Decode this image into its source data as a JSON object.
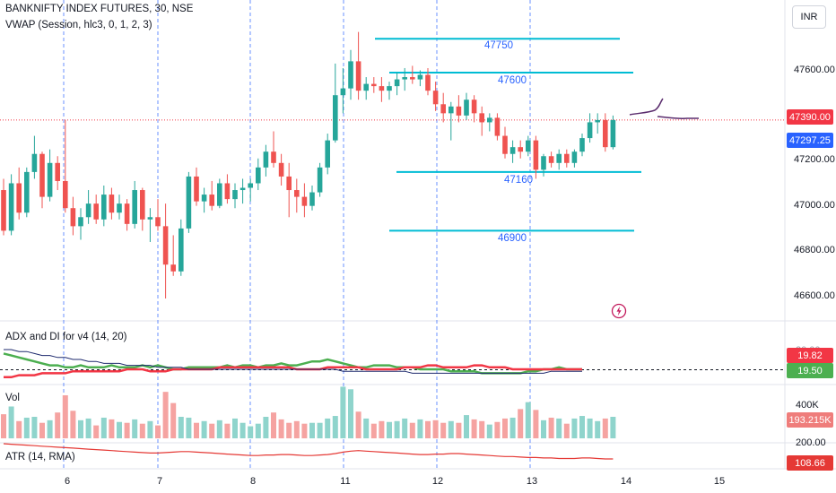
{
  "header": {
    "symbol_line": "BANKNIFTY INDEX FUTURES, 30, NSE",
    "indicator_line": "VWAP (Session, hlc3, 0, 1, 2, 3)",
    "currency": "INR"
  },
  "panes": {
    "adx_label": "ADX and DI for v4 (14, 20)",
    "vol_label": "Vol",
    "atr_label": "ATR (14, RMA)"
  },
  "colors": {
    "up": "#26a69a",
    "down": "#ef5350",
    "level_line": "#00bcd4",
    "level_text": "#2962ff",
    "last_price": "#f23645",
    "vwap": "#2962ff",
    "adx_green": "#4caf50",
    "adx_red": "#f23645",
    "adx_navy": "#1e2a6e",
    "atr": "#e53935",
    "drawing": "#5b2d6e"
  },
  "chart_data": [
    {
      "type": "candlestick",
      "title": "BANKNIFTY INDEX FUTURES, 30, NSE",
      "x_tick_labels": [
        "6",
        "7",
        "8",
        "11",
        "12",
        "13",
        "14",
        "15"
      ],
      "y_tick_labels": [
        "47600.00",
        "47400.00",
        "47200.00",
        "47000.00",
        "46800.00",
        "46600.00"
      ],
      "ylim": [
        46500,
        47870
      ],
      "horizontal_levels": [
        47750,
        47600,
        47160,
        46900
      ],
      "level_labels": [
        "47750",
        "47600",
        "47160",
        "46900"
      ],
      "last_price": "47390.00",
      "vwap_value": "47297.25",
      "candles": [
        [
          47080,
          47130,
          46880,
          46900
        ],
        [
          46900,
          47150,
          46880,
          47110
        ],
        [
          47110,
          47180,
          46950,
          46980
        ],
        [
          46980,
          47180,
          46960,
          47160
        ],
        [
          47160,
          47320,
          47130,
          47240
        ],
        [
          47240,
          47250,
          47000,
          47050
        ],
        [
          47050,
          47260,
          47030,
          47200
        ],
        [
          47200,
          47230,
          47080,
          47120
        ],
        [
          47120,
          47390,
          46980,
          47000
        ],
        [
          47000,
          47050,
          46880,
          46920
        ],
        [
          46920,
          47000,
          46860,
          46960
        ],
        [
          46960,
          47080,
          46930,
          47020
        ],
        [
          47020,
          47060,
          46930,
          46950
        ],
        [
          46950,
          47100,
          46920,
          47060
        ],
        [
          47060,
          47090,
          46950,
          46980
        ],
        [
          46980,
          47060,
          46950,
          47020
        ],
        [
          47020,
          47040,
          46900,
          46930
        ],
        [
          46930,
          47120,
          46910,
          47080
        ],
        [
          47080,
          47090,
          46900,
          46950
        ],
        [
          46950,
          47000,
          46850,
          46960
        ],
        [
          46960,
          47040,
          46900,
          46920
        ],
        [
          46920,
          47020,
          46600,
          46750
        ],
        [
          46750,
          46880,
          46700,
          46720
        ],
        [
          46720,
          46950,
          46700,
          46910
        ],
        [
          46910,
          47160,
          46890,
          47140
        ],
        [
          47140,
          47180,
          47010,
          47030
        ],
        [
          47030,
          47090,
          46980,
          47060
        ],
        [
          47060,
          47120,
          46990,
          47010
        ],
        [
          47010,
          47130,
          47000,
          47110
        ],
        [
          47110,
          47150,
          47020,
          47040
        ],
        [
          47040,
          47110,
          47000,
          47080
        ],
        [
          47080,
          47130,
          47020,
          47090
        ],
        [
          47090,
          47130,
          47030,
          47110
        ],
        [
          47110,
          47220,
          47080,
          47180
        ],
        [
          47180,
          47280,
          47140,
          47250
        ],
        [
          47250,
          47340,
          47180,
          47200
        ],
        [
          47200,
          47240,
          47100,
          47140
        ],
        [
          47140,
          47200,
          46960,
          47080
        ],
        [
          47080,
          47130,
          46980,
          47050
        ],
        [
          47050,
          47110,
          46960,
          47010
        ],
        [
          47010,
          47100,
          46990,
          47070
        ],
        [
          47070,
          47200,
          47050,
          47180
        ],
        [
          47180,
          47330,
          47150,
          47300
        ],
        [
          47300,
          47640,
          47290,
          47500
        ],
        [
          47500,
          47620,
          47420,
          47530
        ],
        [
          47530,
          47700,
          47480,
          47650
        ],
        [
          47650,
          47780,
          47480,
          47520
        ],
        [
          47520,
          47580,
          47480,
          47550
        ],
        [
          47550,
          47580,
          47510,
          47540
        ],
        [
          47540,
          47580,
          47470,
          47520
        ],
        [
          47520,
          47560,
          47480,
          47540
        ],
        [
          47540,
          47600,
          47500,
          47570
        ],
        [
          47570,
          47620,
          47520,
          47580
        ],
        [
          47580,
          47630,
          47550,
          47570
        ],
        [
          47570,
          47610,
          47540,
          47590
        ],
        [
          47590,
          47620,
          47500,
          47520
        ],
        [
          47520,
          47560,
          47430,
          47460
        ],
        [
          47460,
          47510,
          47380,
          47420
        ],
        [
          47420,
          47470,
          47300,
          47450
        ],
        [
          47450,
          47500,
          47380,
          47410
        ],
        [
          47410,
          47510,
          47390,
          47480
        ],
        [
          47480,
          47500,
          47380,
          47420
        ],
        [
          47420,
          47450,
          47320,
          47380
        ],
        [
          47380,
          47420,
          47340,
          47400
        ],
        [
          47400,
          47420,
          47300,
          47320
        ],
        [
          47320,
          47360,
          47220,
          47240
        ],
        [
          47240,
          47300,
          47200,
          47270
        ],
        [
          47270,
          47300,
          47220,
          47250
        ],
        [
          47250,
          47320,
          47230,
          47300
        ],
        [
          47300,
          47320,
          47130,
          47170
        ],
        [
          47170,
          47240,
          47140,
          47230
        ],
        [
          47230,
          47250,
          47180,
          47200
        ],
        [
          47200,
          47260,
          47170,
          47240
        ],
        [
          47240,
          47260,
          47180,
          47200
        ],
        [
          47200,
          47260,
          47180,
          47250
        ],
        [
          47250,
          47330,
          47230,
          47310
        ],
        [
          47310,
          47420,
          47290,
          47380
        ],
        [
          47380,
          47420,
          47330,
          47390
        ],
        [
          47390,
          47420,
          47250,
          47270
        ],
        [
          47270,
          47410,
          47260,
          47390
        ]
      ]
    },
    {
      "type": "line",
      "title": "ADX and DI for v4 (14, 20)",
      "y_tick_labels": [
        "20.00"
      ],
      "series": [
        {
          "name": "+DI",
          "value_label": "19.50",
          "values": [
            28,
            27,
            26,
            25,
            24,
            23,
            22,
            22,
            21,
            21,
            22,
            21,
            21,
            21,
            22,
            21,
            21,
            21,
            22,
            21,
            22,
            21,
            20,
            20,
            21,
            21,
            21,
            21,
            21,
            22,
            21,
            22,
            22,
            21,
            22,
            22,
            23,
            22,
            22,
            23,
            24,
            24,
            25,
            24,
            23,
            22,
            21,
            21,
            22,
            22,
            22,
            21,
            21,
            21,
            20,
            20,
            20,
            20,
            19,
            19,
            19,
            19,
            18,
            18,
            18,
            18,
            18,
            18,
            19,
            19,
            20,
            20,
            21,
            20,
            20,
            20
          ]
        },
        {
          "name": "-DI",
          "value_label": "19.82",
          "values": [
            16,
            16,
            17,
            17,
            17,
            18,
            18,
            18,
            18,
            19,
            19,
            19,
            19,
            19,
            19,
            19,
            20,
            20,
            20,
            19,
            19,
            19,
            20,
            20,
            20,
            20,
            20,
            20,
            21,
            21,
            21,
            21,
            21,
            21,
            21,
            21,
            21,
            21,
            20,
            20,
            20,
            20,
            21,
            21,
            21,
            21,
            21,
            20,
            20,
            20,
            20,
            20,
            21,
            21,
            21,
            22,
            22,
            21,
            21,
            21,
            21,
            22,
            22,
            21,
            21,
            21,
            20,
            20,
            20,
            20,
            20,
            20,
            20,
            20,
            20,
            20
          ]
        },
        {
          "name": "ADX",
          "values": [
            30,
            30,
            29,
            29,
            28,
            27,
            27,
            26,
            26,
            25,
            25,
            24,
            24,
            23,
            23,
            23,
            22,
            22,
            22,
            22,
            21,
            21,
            21,
            21,
            20,
            20,
            20,
            20,
            20,
            20,
            20,
            20,
            20,
            20,
            20,
            20,
            20,
            20,
            20,
            20,
            20,
            20,
            20,
            20,
            19,
            19,
            19,
            19,
            19,
            19,
            19,
            19,
            19,
            18,
            18,
            18,
            18,
            18,
            18,
            18,
            18,
            18,
            18,
            18,
            18,
            18,
            18,
            18,
            18,
            18,
            18,
            19,
            19,
            19,
            19,
            19
          ]
        }
      ]
    },
    {
      "type": "bar",
      "title": "Vol",
      "y_tick_labels": [
        "400K",
        "200.00"
      ],
      "value_label": "193.215K",
      "values": [
        280,
        370,
        200,
        240,
        250,
        180,
        210,
        300,
        500,
        320,
        210,
        230,
        150,
        240,
        220,
        190,
        180,
        220,
        170,
        200,
        150,
        540,
        410,
        250,
        240,
        180,
        200,
        170,
        210,
        170,
        230,
        180,
        140,
        170,
        250,
        300,
        220,
        180,
        200,
        170,
        180,
        180,
        230,
        260,
        600,
        570,
        310,
        230,
        170,
        200,
        190,
        200,
        230,
        180,
        220,
        200,
        210,
        180,
        200,
        180,
        270,
        220,
        200,
        160,
        190,
        230,
        240,
        340,
        420,
        330,
        210,
        240,
        230,
        170,
        230,
        260,
        230,
        200,
        230,
        250
      ]
    },
    {
      "type": "line",
      "title": "ATR (14, RMA)",
      "value_label": "108.66",
      "values": [
        140,
        139,
        138,
        137,
        136,
        135,
        134,
        133,
        132,
        131,
        130,
        129,
        128,
        127,
        126,
        125,
        124,
        123,
        122,
        121,
        121,
        122,
        123,
        124,
        124,
        123,
        122,
        121,
        120,
        119,
        118,
        117,
        116,
        116,
        117,
        117,
        118,
        118,
        117,
        116,
        116,
        117,
        118,
        120,
        123,
        125,
        126,
        125,
        124,
        123,
        122,
        121,
        120,
        119,
        118,
        118,
        119,
        119,
        120,
        120,
        119,
        118,
        117,
        116,
        115,
        114,
        114,
        113,
        112,
        112,
        111,
        111,
        110,
        110,
        110,
        111,
        111,
        110,
        109,
        109
      ]
    }
  ]
}
